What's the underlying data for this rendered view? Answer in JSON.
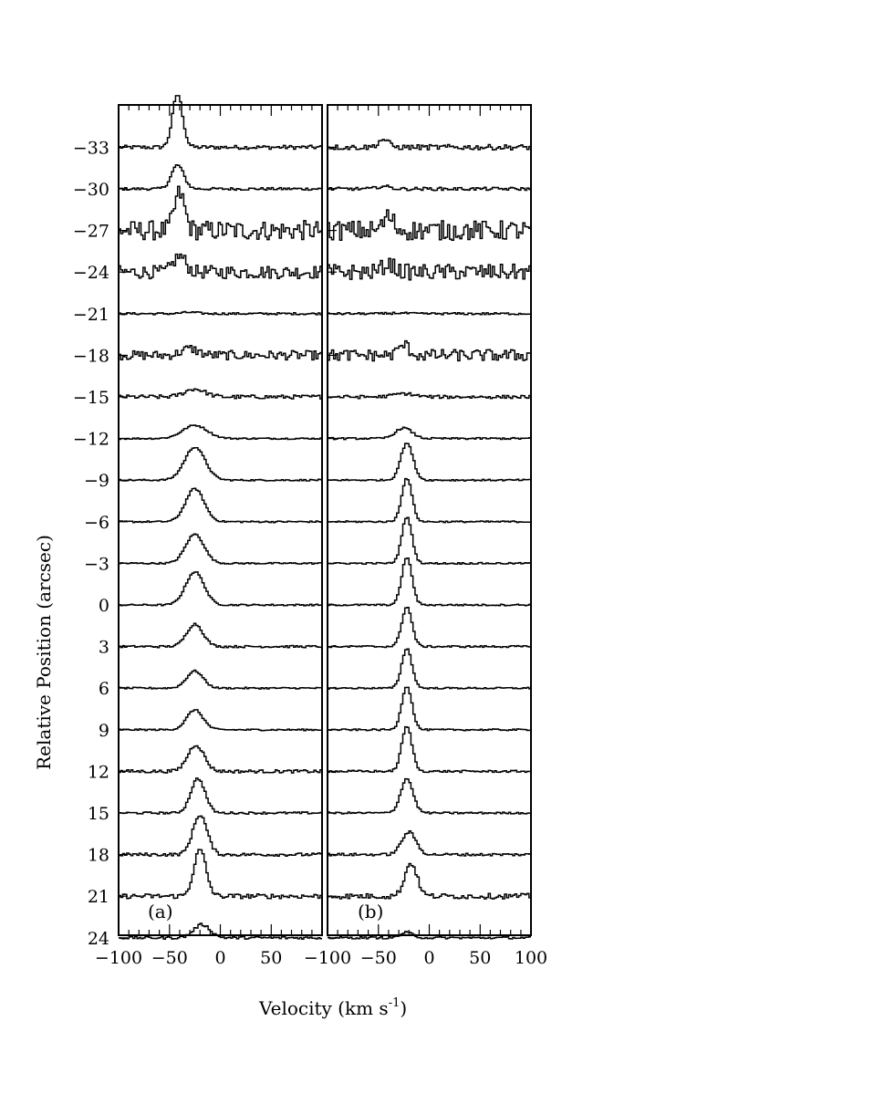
{
  "chart_data": {
    "type": "line",
    "description_kind": "stacked spectra (position-velocity)",
    "xlabel": "Velocity (km s",
    "xlabel_superscript": "-1",
    "xlabel_close": ")",
    "ylabel": "Relative Position (arcsec)",
    "x_tick_labels": [
      "−100",
      "−50",
      "0",
      "50",
      "−100",
      "−50",
      "0",
      "50",
      "100"
    ],
    "y_tick_labels": [
      "−33",
      "−30",
      "−27",
      "−24",
      "−21",
      "−18",
      "−15",
      "−12",
      "−9",
      "−6",
      "−3",
      "0",
      "3",
      "6",
      "9",
      "12",
      "15",
      "18",
      "21",
      "24"
    ],
    "panels": [
      {
        "label": "(a)",
        "xlim": [
          -100,
          100
        ],
        "offsets": [
          -33,
          -30,
          -27,
          -24,
          -21,
          -18,
          -15,
          -12,
          -9,
          -6,
          -3,
          0,
          3,
          6,
          9,
          12,
          15,
          18,
          21,
          24
        ],
        "peak_velocity": [
          -42,
          -42,
          -40,
          -40,
          -30,
          -30,
          -25,
          -25,
          -25,
          -25,
          -25,
          -25,
          -25,
          -25,
          -25,
          -24,
          -22,
          -20,
          -20,
          -18
        ],
        "peak_height": [
          4.0,
          1.8,
          2.8,
          1.2,
          0.1,
          0.5,
          0.6,
          1.0,
          2.5,
          2.5,
          2.2,
          2.5,
          1.7,
          1.3,
          1.5,
          2.0,
          2.6,
          3.0,
          3.5,
          1.0
        ],
        "peak_width": [
          5,
          6,
          5,
          6,
          8,
          8,
          10,
          12,
          10,
          9,
          9,
          9,
          8,
          8,
          8,
          8,
          7,
          7,
          6,
          8
        ],
        "noise": [
          0.15,
          0.1,
          0.75,
          0.5,
          0.08,
          0.35,
          0.15,
          0.06,
          0.06,
          0.06,
          0.06,
          0.06,
          0.08,
          0.06,
          0.06,
          0.12,
          0.08,
          0.12,
          0.18,
          0.1
        ]
      },
      {
        "label": "(b)",
        "xlim": [
          -100,
          100
        ],
        "offsets": [
          -33,
          -30,
          -27,
          -24,
          -21,
          -18,
          -15,
          -12,
          -9,
          -6,
          -3,
          0,
          3,
          6,
          9,
          12,
          15,
          18,
          21,
          24
        ],
        "peak_velocity": [
          -45,
          -45,
          -40,
          -40,
          -30,
          -25,
          -25,
          -25,
          -22,
          -22,
          -22,
          -22,
          -22,
          -22,
          -22,
          -22,
          -22,
          -20,
          -18,
          -22
        ],
        "peak_height": [
          0.6,
          0.2,
          1.0,
          0.6,
          0.05,
          0.8,
          0.25,
          0.8,
          2.8,
          3.3,
          3.5,
          3.6,
          3.0,
          3.0,
          3.3,
          3.4,
          2.6,
          1.7,
          2.5,
          0.4
        ],
        "peak_width": [
          5,
          6,
          5,
          6,
          8,
          5,
          10,
          8,
          6,
          5,
          5,
          5,
          5,
          5,
          5,
          5,
          6,
          7,
          6,
          6
        ],
        "noise": [
          0.2,
          0.12,
          0.75,
          0.6,
          0.08,
          0.45,
          0.12,
          0.07,
          0.06,
          0.06,
          0.06,
          0.06,
          0.07,
          0.06,
          0.06,
          0.08,
          0.07,
          0.1,
          0.2,
          0.08
        ]
      }
    ]
  }
}
